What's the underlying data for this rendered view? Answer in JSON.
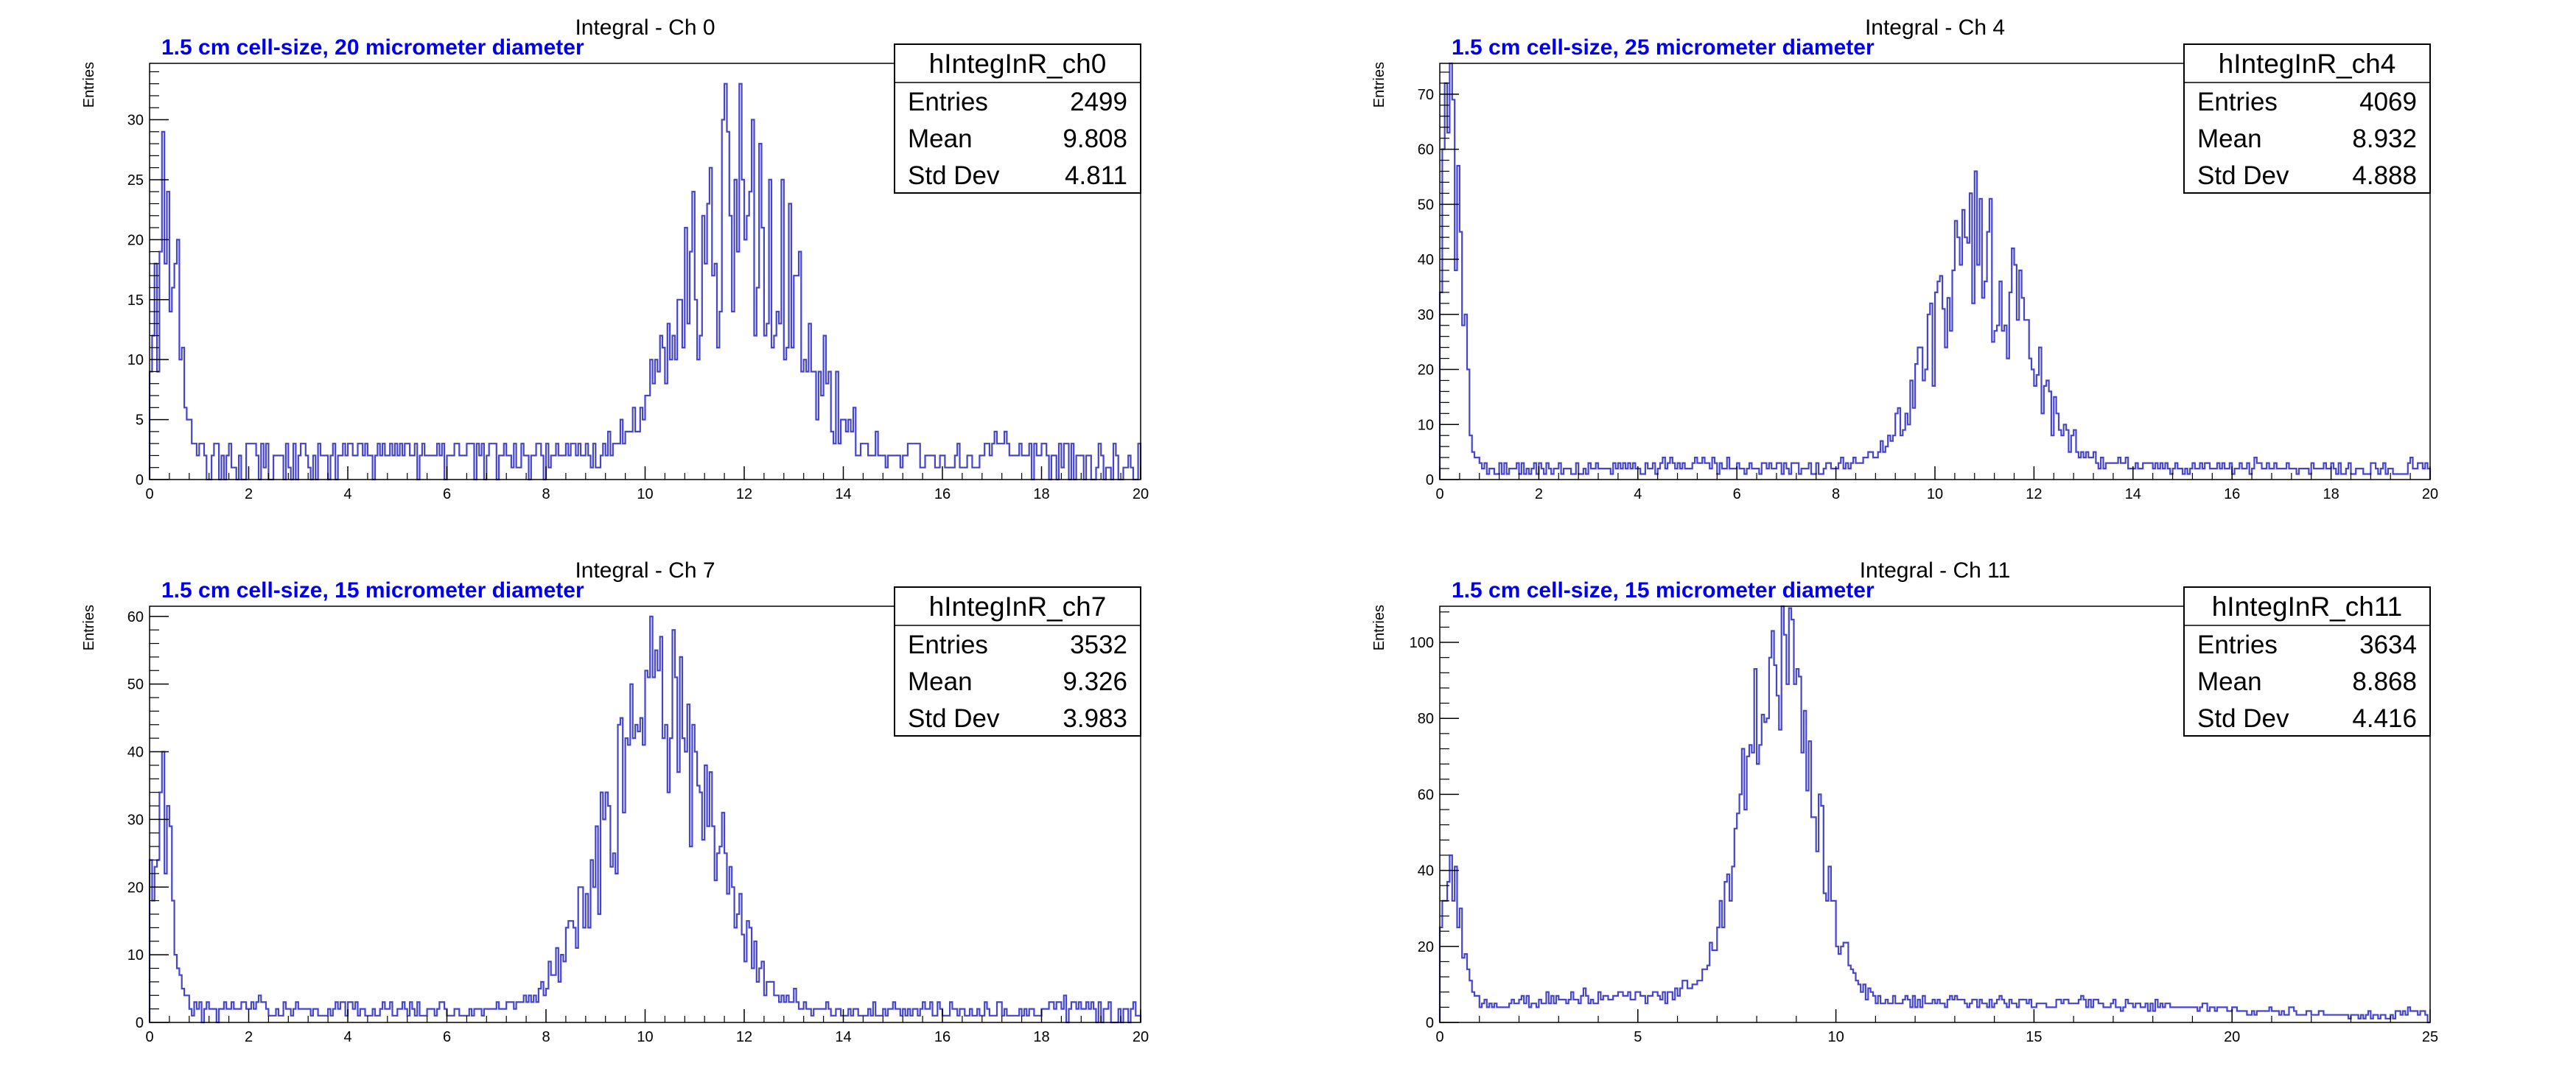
{
  "colors": {
    "series": "#4444cc",
    "subtitle": "#0000ee",
    "axis": "#000000"
  },
  "chart_data": [
    {
      "type": "histogram",
      "title": "Integral - Ch 0",
      "subtitle": "1.5 cm cell-size, 20 micrometer diameter",
      "xlabel": "",
      "ylabel": "Entries",
      "xlim": [
        0,
        20
      ],
      "ylim": [
        0,
        34.7
      ],
      "xticks": [
        0,
        2,
        4,
        6,
        8,
        10,
        12,
        14,
        16,
        18,
        20
      ],
      "xtick_labels": [
        "0",
        "2",
        "4",
        "6",
        "8",
        "10",
        "12",
        "14",
        "16",
        "18",
        "20"
      ],
      "yticks": [
        0,
        5,
        10,
        15,
        20,
        25,
        30
      ],
      "ytick_labels": [
        "0",
        "5",
        "10",
        "15",
        "20",
        "25",
        "30"
      ],
      "stats": {
        "name": "hIntegInR_ch0",
        "rows": [
          [
            "Entries",
            "2499"
          ],
          [
            "Mean",
            "9.808"
          ],
          [
            "Std Dev",
            "4.811"
          ]
        ]
      },
      "series": [
        {
          "name": "hIntegInR_ch0",
          "components": [
            {
              "center": 0.35,
              "sigma": 0.25,
              "amp": 19
            },
            {
              "center": 11.9,
              "sigma": 1.1,
              "amp": 22
            },
            {
              "center": 5.5,
              "sigma": 4.5,
              "amp": 1.0
            },
            {
              "center": 16,
              "sigma": 3,
              "amp": 1.2
            }
          ],
          "noise": 0.3,
          "seed": 11,
          "peaks": [
            [
              0.3,
              29
            ],
            [
              0.55,
              20
            ],
            [
              11.9,
              33
            ],
            [
              12.3,
              28
            ]
          ]
        }
      ]
    },
    {
      "type": "histogram",
      "title": "Integral - Ch 4",
      "subtitle": "1.5 cm cell-size, 25 micrometer diameter",
      "xlabel": "",
      "ylabel": "Entries",
      "xlim": [
        0,
        20
      ],
      "ylim": [
        0,
        75.6
      ],
      "xticks": [
        0,
        2,
        4,
        6,
        8,
        10,
        12,
        14,
        16,
        18,
        20
      ],
      "xtick_labels": [
        "0",
        "2",
        "4",
        "6",
        "8",
        "10",
        "12",
        "14",
        "16",
        "18",
        "20"
      ],
      "yticks": [
        0,
        10,
        20,
        30,
        40,
        50,
        60,
        70
      ],
      "ytick_labels": [
        "0",
        "10",
        "20",
        "30",
        "40",
        "50",
        "60",
        "70"
      ],
      "stats": {
        "name": "hIntegInR_ch4",
        "rows": [
          [
            "Entries",
            "4069"
          ],
          [
            "Mean",
            "8.932"
          ],
          [
            "Std Dev",
            "4.888"
          ]
        ]
      },
      "series": [
        {
          "name": "hIntegInR_ch4",
          "components": [
            {
              "center": 0.2,
              "sigma": 0.22,
              "amp": 62
            },
            {
              "center": 10.9,
              "sigma": 0.95,
              "amp": 38
            },
            {
              "center": 5,
              "sigma": 4,
              "amp": 2.0
            },
            {
              "center": 16,
              "sigma": 3.5,
              "amp": 2.0
            }
          ],
          "noise": 0.22,
          "seed": 23,
          "peaks": [
            [
              0.1,
              72
            ],
            [
              10.8,
              56
            ],
            [
              11.1,
              45
            ]
          ]
        }
      ]
    },
    {
      "type": "histogram",
      "title": "Integral - Ch 7",
      "subtitle": "1.5 cm cell-size, 15 micrometer diameter",
      "xlabel": "",
      "ylabel": "Entries",
      "xlim": [
        0,
        20
      ],
      "ylim": [
        0,
        61.5
      ],
      "xticks": [
        0,
        2,
        4,
        6,
        8,
        10,
        12,
        14,
        16,
        18,
        20
      ],
      "xtick_labels": [
        "0",
        "2",
        "4",
        "6",
        "8",
        "10",
        "12",
        "14",
        "16",
        "18",
        "20"
      ],
      "yticks": [
        0,
        10,
        20,
        30,
        40,
        50,
        60
      ],
      "ytick_labels": [
        "0",
        "10",
        "20",
        "30",
        "40",
        "50",
        "60"
      ],
      "stats": {
        "name": "hIntegInR_ch7",
        "rows": [
          [
            "Entries",
            "3532"
          ],
          [
            "Mean",
            "9.326"
          ],
          [
            "Std Dev",
            "3.983"
          ]
        ]
      },
      "series": [
        {
          "name": "hIntegInR_ch7",
          "components": [
            {
              "center": 0.2,
              "sigma": 0.25,
              "amp": 30
            },
            {
              "center": 10.3,
              "sigma": 1.05,
              "amp": 45
            },
            {
              "center": 5,
              "sigma": 4,
              "amp": 1.5
            },
            {
              "center": 16,
              "sigma": 3,
              "amp": 1.5
            }
          ],
          "noise": 0.22,
          "seed": 37,
          "peaks": [
            [
              0.25,
              40
            ],
            [
              10.6,
              58
            ],
            [
              10.2,
              51
            ]
          ]
        }
      ]
    },
    {
      "type": "histogram",
      "title": "Integral - Ch 11",
      "subtitle": "1.5 cm cell-size, 15 micrometer diameter",
      "xlabel": "",
      "ylabel": "Entries",
      "xlim": [
        0,
        25
      ],
      "ylim": [
        0,
        109.5
      ],
      "xticks": [
        0,
        5,
        10,
        15,
        20,
        25
      ],
      "xtick_labels": [
        "0",
        "5",
        "10",
        "15",
        "20",
        "25"
      ],
      "yticks": [
        0,
        20,
        40,
        60,
        80,
        100
      ],
      "ytick_labels": [
        "0",
        "20",
        "40",
        "60",
        "80",
        "100"
      ],
      "stats": {
        "name": "hIntegInR_ch11",
        "rows": [
          [
            "Entries",
            "3634"
          ],
          [
            "Mean",
            "8.868"
          ],
          [
            "Std Dev",
            "4.416"
          ]
        ]
      },
      "series": [
        {
          "name": "hIntegInR_ch11",
          "components": [
            {
              "center": 0.25,
              "sigma": 0.3,
              "amp": 34
            },
            {
              "center": 8.55,
              "sigma": 0.85,
              "amp": 95
            },
            {
              "center": 4,
              "sigma": 3.5,
              "amp": 5
            },
            {
              "center": 14,
              "sigma": 6,
              "amp": 5
            }
          ],
          "noise": 0.15,
          "seed": 51,
          "peaks": [
            [
              0.4,
              41
            ],
            [
              8.4,
              103
            ],
            [
              8.7,
              102
            ],
            [
              9.0,
              93
            ]
          ]
        }
      ]
    }
  ]
}
